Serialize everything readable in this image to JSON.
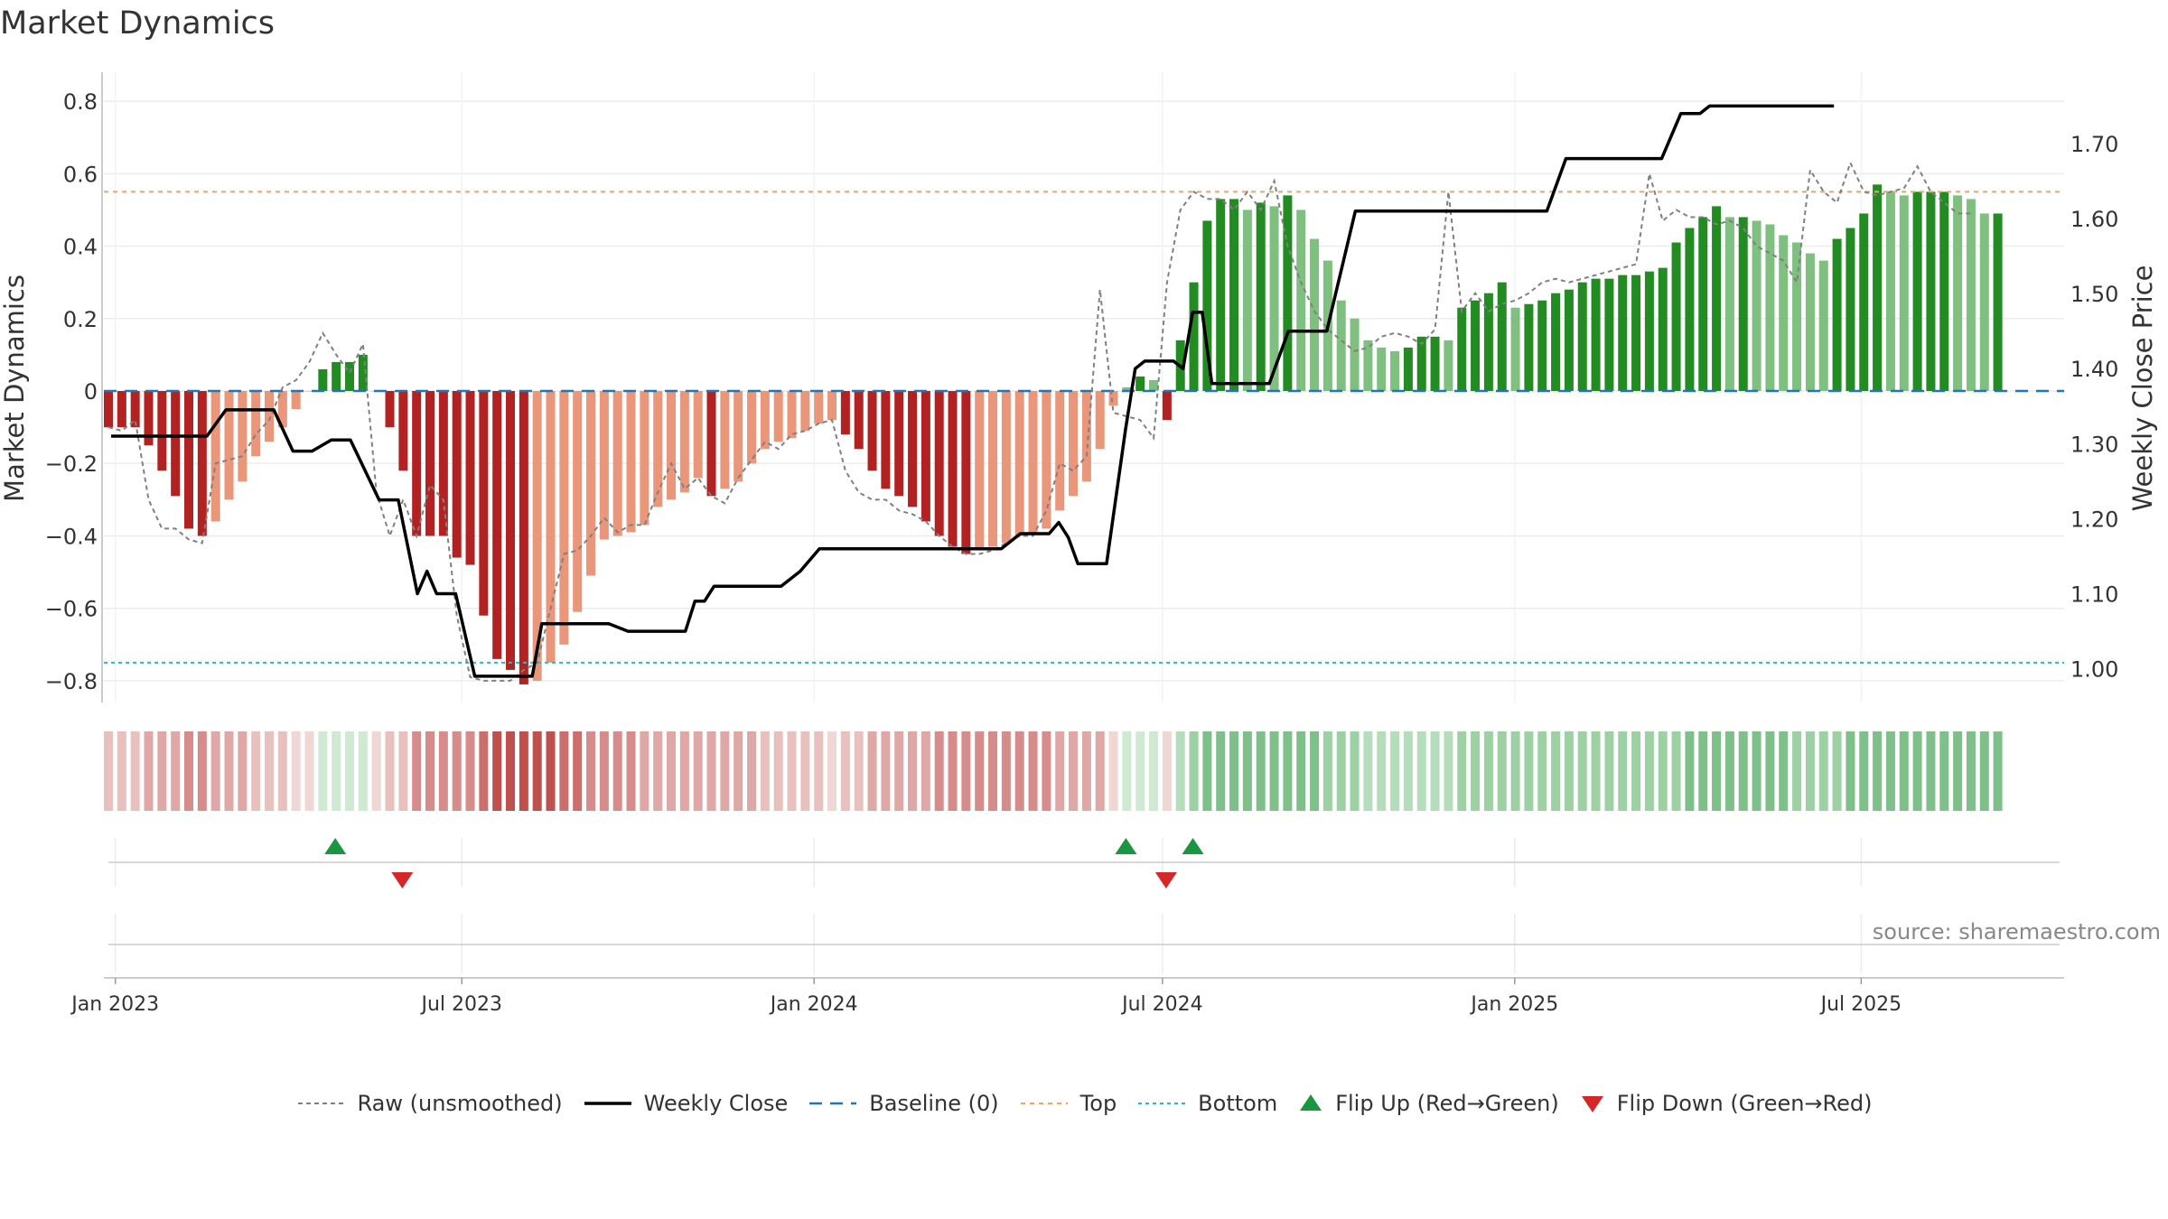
{
  "title": "Market Dynamics",
  "source": "source: sharemaestro.com",
  "colors": {
    "strong_red": "#b22222",
    "light_red": "#e9967a",
    "strong_green": "#228b22",
    "light_green": "#7fbf7f",
    "raw_line": "#808080",
    "close_line": "#000000",
    "baseline": "#1f77b4",
    "top": "#f4a460",
    "bottom": "#20c0c0",
    "flip_up": "#1a9641",
    "flip_down": "#d62728"
  },
  "chart_data": {
    "type": "bar",
    "title": "Market Dynamics",
    "ylabel": "Market Dynamics",
    "y2label": "Weekly Close Price",
    "ylim": [
      -0.86,
      0.88
    ],
    "y2lim": [
      0.955,
      1.795
    ],
    "yticks": [
      -0.8,
      -0.6,
      -0.4,
      -0.2,
      0,
      0.2,
      0.4,
      0.6,
      0.8
    ],
    "ytick_labels": [
      "−0.8",
      "−0.6",
      "−0.4",
      "−0.2",
      "0",
      "0.2",
      "0.4",
      "0.6",
      "0.8"
    ],
    "y2ticks": [
      1.0,
      1.1,
      1.2,
      1.3,
      1.4,
      1.5,
      1.6,
      1.7
    ],
    "y2tick_labels": [
      "1.00",
      "1.10",
      "1.20",
      "1.30",
      "1.40",
      "1.50",
      "1.60",
      "1.70"
    ],
    "xticks": [
      {
        "date": "2023-01-01",
        "label": "Jan 2023"
      },
      {
        "date": "2023-07-01",
        "label": "Jul 2023"
      },
      {
        "date": "2024-01-01",
        "label": "Jan 2024"
      },
      {
        "date": "2024-07-01",
        "label": "Jul 2024"
      },
      {
        "date": "2025-01-01",
        "label": "Jan 2025"
      },
      {
        "date": "2025-07-01",
        "label": "Jul 2025"
      }
    ],
    "xlim": [
      "2022-12-26",
      "2025-10-15"
    ],
    "first_week": "2022-12-26",
    "grid": true,
    "legend_position": "bottom-center",
    "top_level": 0.55,
    "bottom_level": -0.75,
    "baseline_level": 0,
    "bars": [
      -0.1,
      -0.1,
      -0.1,
      -0.15,
      -0.22,
      -0.29,
      -0.38,
      -0.4,
      -0.36,
      -0.3,
      -0.25,
      -0.18,
      -0.14,
      -0.1,
      -0.05,
      0.0,
      0.06,
      0.08,
      0.08,
      0.1,
      0.0,
      -0.1,
      -0.22,
      -0.4,
      -0.4,
      -0.4,
      -0.46,
      -0.48,
      -0.62,
      -0.74,
      -0.77,
      -0.81,
      -0.8,
      -0.75,
      -0.7,
      -0.61,
      -0.51,
      -0.41,
      -0.4,
      -0.39,
      -0.37,
      -0.32,
      -0.3,
      -0.28,
      -0.24,
      -0.29,
      -0.27,
      -0.25,
      -0.2,
      -0.16,
      -0.14,
      -0.13,
      -0.11,
      -0.09,
      -0.08,
      -0.12,
      -0.16,
      -0.22,
      -0.27,
      -0.29,
      -0.32,
      -0.36,
      -0.4,
      -0.43,
      -0.45,
      -0.44,
      -0.43,
      -0.42,
      -0.4,
      -0.39,
      -0.38,
      -0.33,
      -0.29,
      -0.25,
      -0.16,
      -0.04,
      0.01,
      0.04,
      0.03,
      -0.08,
      0.14,
      0.3,
      0.47,
      0.53,
      0.53,
      0.5,
      0.52,
      0.51,
      0.54,
      0.5,
      0.42,
      0.36,
      0.25,
      0.2,
      0.14,
      0.12,
      0.11,
      0.12,
      0.15,
      0.15,
      0.14,
      0.23,
      0.25,
      0.27,
      0.3,
      0.23,
      0.24,
      0.25,
      0.27,
      0.28,
      0.3,
      0.31,
      0.31,
      0.32,
      0.32,
      0.33,
      0.34,
      0.41,
      0.45,
      0.48,
      0.51,
      0.48,
      0.48,
      0.47,
      0.46,
      0.43,
      0.41,
      0.38,
      0.36,
      0.42,
      0.45,
      0.49,
      0.57,
      0.55,
      0.54,
      0.55,
      0.55,
      0.55,
      0.54,
      0.53,
      0.49,
      0.49
    ],
    "raw": [
      -0.1,
      -0.11,
      -0.08,
      -0.3,
      -0.38,
      -0.38,
      -0.41,
      -0.42,
      -0.2,
      -0.19,
      -0.18,
      -0.12,
      -0.08,
      0.01,
      0.03,
      0.08,
      0.16,
      0.1,
      0.05,
      0.13,
      -0.28,
      -0.4,
      -0.3,
      -0.4,
      -0.26,
      -0.3,
      -0.62,
      -0.79,
      -0.8,
      -0.8,
      -0.8,
      -0.77,
      -0.75,
      -0.6,
      -0.45,
      -0.44,
      -0.4,
      -0.35,
      -0.39,
      -0.37,
      -0.37,
      -0.28,
      -0.2,
      -0.27,
      -0.24,
      -0.29,
      -0.31,
      -0.24,
      -0.19,
      -0.14,
      -0.16,
      -0.12,
      -0.11,
      -0.09,
      -0.08,
      -0.22,
      -0.28,
      -0.3,
      -0.3,
      -0.33,
      -0.34,
      -0.36,
      -0.4,
      -0.43,
      -0.45,
      -0.45,
      -0.44,
      -0.42,
      -0.4,
      -0.4,
      -0.33,
      -0.2,
      -0.22,
      -0.18,
      0.28,
      -0.06,
      -0.07,
      -0.08,
      -0.13,
      0.3,
      0.5,
      0.55,
      0.53,
      0.53,
      0.5,
      0.55,
      0.5,
      0.58,
      0.4,
      0.3,
      0.22,
      0.17,
      0.14,
      0.11,
      0.12,
      0.15,
      0.16,
      0.15,
      0.13,
      0.17,
      0.55,
      0.22,
      0.27,
      0.22,
      0.24,
      0.25,
      0.27,
      0.3,
      0.31,
      0.3,
      0.31,
      0.32,
      0.33,
      0.34,
      0.35,
      0.6,
      0.47,
      0.5,
      0.48,
      0.48,
      0.46,
      0.47,
      0.45,
      0.4,
      0.38,
      0.36,
      0.3,
      0.61,
      0.55,
      0.52,
      0.63,
      0.55,
      0.54,
      0.55,
      0.56,
      0.62,
      0.55,
      0.52,
      0.49,
      0.49
    ],
    "close": [
      [
        0,
        1.31
      ],
      [
        10,
        1.31
      ],
      [
        12,
        1.345
      ],
      [
        17,
        1.345
      ],
      [
        19,
        1.29
      ],
      [
        21,
        1.29
      ],
      [
        23,
        1.305
      ],
      [
        25,
        1.305
      ],
      [
        28,
        1.225
      ],
      [
        30,
        1.225
      ],
      [
        32,
        1.1
      ],
      [
        33,
        1.13
      ],
      [
        34,
        1.1
      ],
      [
        35,
        1.1
      ],
      [
        36,
        1.1
      ],
      [
        38,
        0.99
      ],
      [
        44,
        0.99
      ],
      [
        45,
        1.06
      ],
      [
        52,
        1.06
      ],
      [
        54,
        1.05
      ],
      [
        60,
        1.05
      ],
      [
        61,
        1.09
      ],
      [
        62,
        1.09
      ],
      [
        63,
        1.11
      ],
      [
        70,
        1.11
      ],
      [
        72,
        1.13
      ],
      [
        74,
        1.16
      ],
      [
        85,
        1.16
      ],
      [
        93,
        1.16
      ],
      [
        95,
        1.18
      ],
      [
        98,
        1.18
      ],
      [
        99,
        1.195
      ],
      [
        100,
        1.175
      ],
      [
        101,
        1.14
      ],
      [
        104,
        1.14
      ],
      [
        106,
        1.32
      ],
      [
        107,
        1.4
      ],
      [
        108,
        1.41
      ],
      [
        111,
        1.41
      ],
      [
        112,
        1.4
      ],
      [
        113,
        1.475
      ],
      [
        114,
        1.475
      ],
      [
        115,
        1.38
      ],
      [
        121,
        1.38
      ],
      [
        123,
        1.45
      ],
      [
        127,
        1.45
      ],
      [
        130,
        1.61
      ],
      [
        150,
        1.61
      ],
      [
        152,
        1.68
      ],
      [
        162,
        1.68
      ],
      [
        164,
        1.74
      ],
      [
        166,
        1.74
      ],
      [
        167,
        1.75
      ],
      [
        180,
        1.75
      ]
    ],
    "close_start": "2022-12-26",
    "strip": [
      -2,
      -2,
      -2,
      -3,
      -3,
      -3,
      -4,
      -4,
      -3,
      -3,
      -3,
      -2,
      -2,
      -2,
      -1,
      -1,
      1,
      1,
      1,
      1,
      -1,
      -2,
      -2,
      -4,
      -4,
      -4,
      -4,
      -4,
      -5,
      -6,
      -6,
      -6,
      -6,
      -6,
      -5,
      -5,
      -4,
      -4,
      -4,
      -4,
      -3,
      -3,
      -3,
      -3,
      -3,
      -3,
      -3,
      -3,
      -3,
      -2,
      -2,
      -2,
      -2,
      -2,
      -1,
      -2,
      -2,
      -3,
      -3,
      -3,
      -3,
      -3,
      -4,
      -4,
      -4,
      -4,
      -4,
      -4,
      -4,
      -4,
      -4,
      -3,
      -3,
      -3,
      -3,
      -1,
      1,
      1,
      1,
      -1,
      2,
      3,
      4,
      4,
      4,
      4,
      4,
      4,
      4,
      4,
      4,
      3,
      3,
      3,
      2,
      2,
      2,
      2,
      2,
      2,
      2,
      3,
      3,
      3,
      3,
      3,
      3,
      3,
      3,
      3,
      3,
      3,
      3,
      3,
      3,
      3,
      3,
      3,
      4,
      4,
      4,
      4,
      4,
      4,
      4,
      4,
      3,
      3,
      3,
      3,
      4,
      4,
      4,
      4,
      4,
      4,
      4,
      4,
      4,
      4,
      4,
      4
    ],
    "flips_up": [
      "2023-04-24",
      "2024-06-10",
      "2024-07-15"
    ],
    "flips_down": [
      "2023-05-29",
      "2024-07-01"
    ]
  },
  "legend": [
    {
      "key": "raw",
      "label": "Raw (unsmoothed)"
    },
    {
      "key": "close",
      "label": "Weekly Close"
    },
    {
      "key": "baseline",
      "label": "Baseline (0)"
    },
    {
      "key": "top",
      "label": "Top"
    },
    {
      "key": "bottom",
      "label": "Bottom"
    },
    {
      "key": "flip_up",
      "label": "Flip Up (Red→Green)"
    },
    {
      "key": "flip_down",
      "label": "Flip Down (Green→Red)"
    }
  ]
}
